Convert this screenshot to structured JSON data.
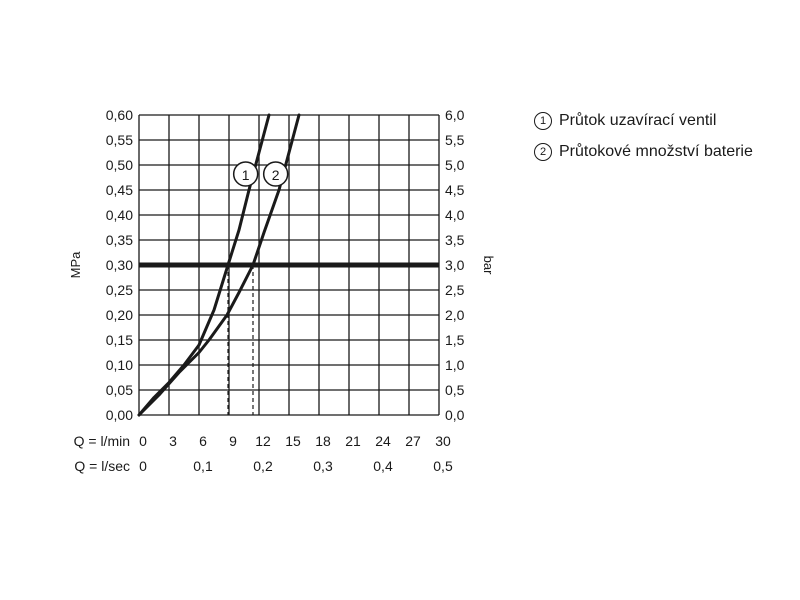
{
  "chart_data": {
    "type": "line",
    "left_axis": {
      "label": "MPa",
      "ylim": [
        0,
        0.6
      ],
      "ticks": [
        "0,00",
        "0,05",
        "0,10",
        "0,15",
        "0,20",
        "0,25",
        "0,30",
        "0,35",
        "0,40",
        "0,45",
        "0,50",
        "0,55",
        "0,60"
      ]
    },
    "right_axis": {
      "label": "bar",
      "ylim": [
        0,
        6
      ],
      "ticks": [
        "0,0",
        "0,5",
        "1,0",
        "1,5",
        "2,0",
        "2,5",
        "3,0",
        "3,5",
        "4,0",
        "4,5",
        "5,0",
        "5,5",
        "6,0"
      ]
    },
    "x_axis_lmin": {
      "label": "Q = l/min",
      "xlim": [
        0,
        30
      ],
      "ticks": [
        "0",
        "3",
        "6",
        "9",
        "12",
        "15",
        "18",
        "21",
        "24",
        "27",
        "30"
      ]
    },
    "x_axis_lsec": {
      "label": "Q = l/sec",
      "values": [
        0,
        0.1,
        0.2,
        0.3,
        0.4,
        0.5
      ],
      "ticks": [
        "0",
        "0,1",
        "0,2",
        "0,3",
        "0,4",
        "0,5"
      ]
    },
    "grid": true,
    "reference_line": {
      "y_mpa": 0.3
    },
    "drop_lines_lmin": [
      8.9,
      11.4
    ],
    "series": [
      {
        "name": "1",
        "x_lmin": [
          0,
          1.5,
          3,
          4.5,
          6,
          7.5,
          8.9,
          10,
          11,
          12,
          13
        ],
        "y_mpa": [
          0,
          0.035,
          0.065,
          0.1,
          0.14,
          0.21,
          0.3,
          0.37,
          0.45,
          0.525,
          0.6
        ]
      },
      {
        "name": "2",
        "x_lmin": [
          0,
          2,
          4,
          6,
          7,
          8.8,
          10,
          11.4,
          12.5,
          14,
          15,
          16
        ],
        "y_mpa": [
          0,
          0.04,
          0.085,
          0.125,
          0.15,
          0.2,
          0.245,
          0.3,
          0.365,
          0.45,
          0.525,
          0.6
        ]
      }
    ],
    "colors": {
      "line": "#1a1a1a",
      "grid": "#1a1a1a",
      "background": "#ffffff"
    }
  },
  "legend": {
    "items": [
      {
        "mark": "1",
        "text": "Průtok uzavírací ventil"
      },
      {
        "mark": "2",
        "text": "Průtokové množství baterie"
      }
    ]
  }
}
